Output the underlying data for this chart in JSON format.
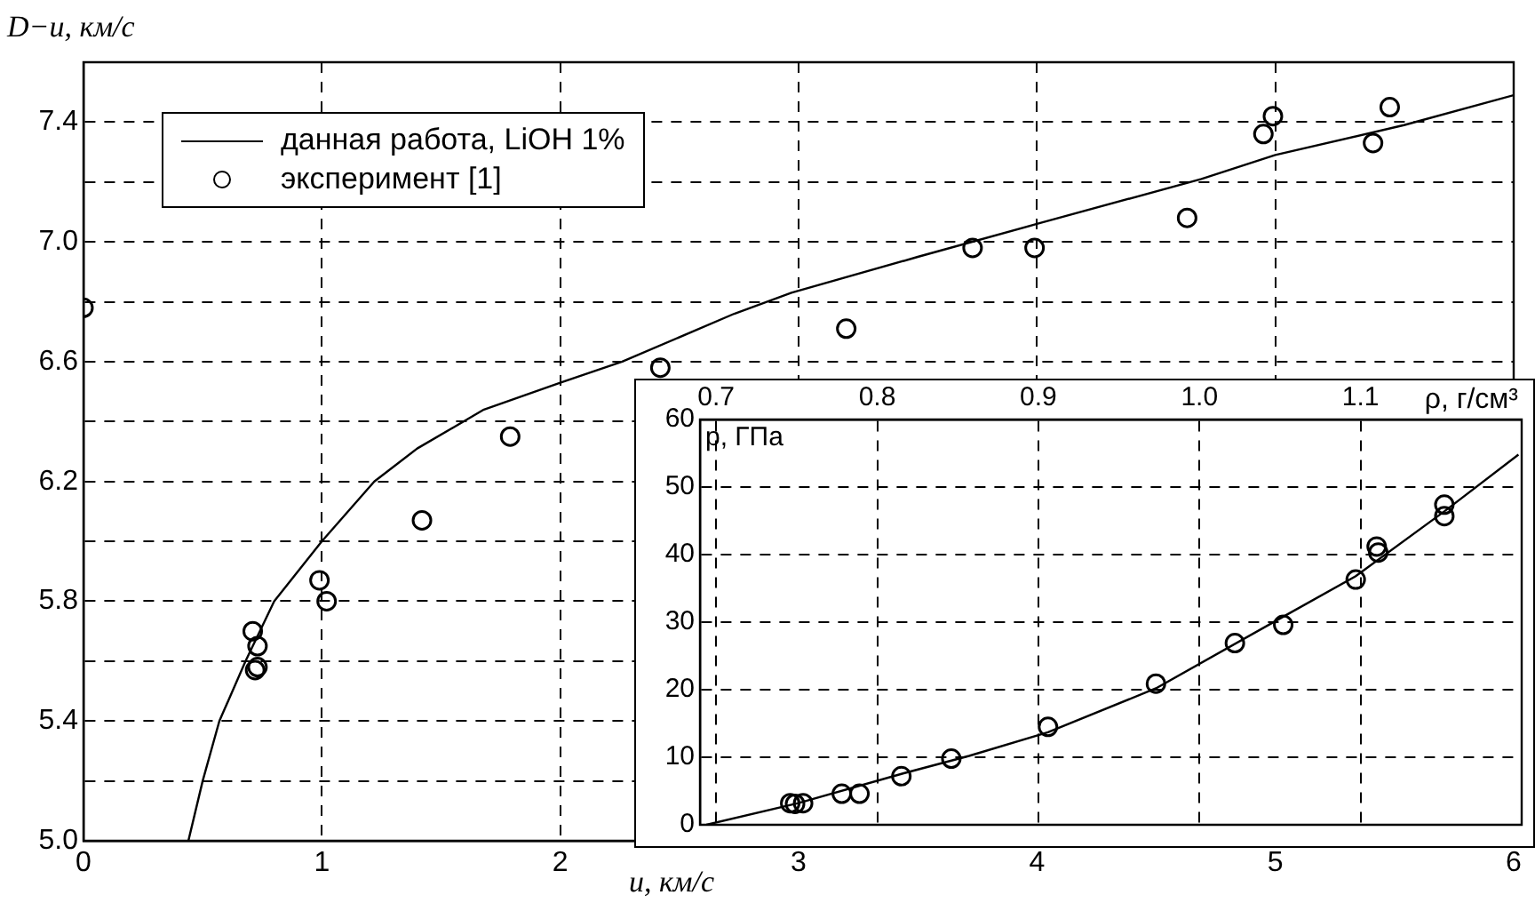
{
  "chart_data": [
    {
      "type": "line",
      "xlabel": "u, км/с",
      "ylabel": "D−u, км/с",
      "xlim": [
        0,
        6
      ],
      "xticks": [
        0,
        1,
        2,
        3,
        4,
        5,
        6
      ],
      "ylim": [
        5.0,
        7.6
      ],
      "yticks": [
        {
          "value": 5.0,
          "label": "5.0"
        },
        {
          "value": 5.2,
          "label": null
        },
        5.4,
        {
          "value": 5.6,
          "label": null
        },
        5.8,
        {
          "value": 6.0,
          "label": null
        },
        6.2,
        {
          "value": 6.4,
          "label": null
        },
        6.6,
        {
          "value": 6.8,
          "label": null
        },
        {
          "value": 7.0,
          "label": "7.0"
        },
        {
          "value": 7.2,
          "label": null
        },
        7.4
      ],
      "grid": true,
      "legend": "top left",
      "series": [
        {
          "type": "line",
          "name": "данная работа, LiOH 1%",
          "color": "#000000",
          "marker": "none",
          "line_style": "solid",
          "x": [
            0.44,
            0.5,
            0.57,
            0.68,
            0.8,
            1.0,
            1.22,
            1.4,
            1.68,
            2.0,
            2.26,
            2.73,
            2.97,
            3.5,
            4.0,
            4.69,
            5.0,
            5.54,
            6.0
          ],
          "values": [
            5.0,
            5.2,
            5.4,
            5.6,
            5.8,
            6.0,
            6.2,
            6.31,
            6.44,
            6.53,
            6.6,
            6.76,
            6.83,
            6.95,
            7.06,
            7.21,
            7.29,
            7.39,
            7.49
          ]
        },
        {
          "type": "scatter",
          "name": "эксперимент [1]",
          "color": "#000000",
          "marker": "circle",
          "x": [
            0,
            0.71,
            0.73,
            0.72,
            0.73,
            0.99,
            1.02,
            1.42,
            1.79,
            2.42,
            3.2,
            3.73,
            3.99,
            4.63,
            4.95,
            4.99,
            5.41,
            5.48
          ],
          "values": [
            6.78,
            5.7,
            5.65,
            5.57,
            5.58,
            5.87,
            5.8,
            6.07,
            6.35,
            6.58,
            6.71,
            6.98,
            6.98,
            7.08,
            7.36,
            7.42,
            7.33,
            7.45
          ]
        }
      ]
    },
    {
      "type": "line",
      "xlabel": "ρ, г/см³",
      "ylabel": "p, ГПа",
      "xlim": [
        0.69,
        1.2
      ],
      "xticks": [
        {
          "value": 0.7,
          "label": "0.7"
        },
        0.8,
        0.9,
        {
          "value": 1.0,
          "label": "1.0"
        },
        1.1
      ],
      "ylim": [
        0,
        60
      ],
      "yticks": [
        0,
        10,
        20,
        30,
        40,
        50,
        60
      ],
      "grid": true,
      "series": [
        {
          "type": "line",
          "color": "#000000",
          "marker": "none",
          "line_style": "solid",
          "x": [
            0.694,
            0.751,
            0.816,
            0.857,
            0.906,
            0.973,
            1.052,
            1.097,
            1.152,
            1.198
          ],
          "values": [
            0,
            3.2,
            7.6,
            10.2,
            13.7,
            20.2,
            30.8,
            36.8,
            46.4,
            54.8
          ]
        },
        {
          "type": "scatter",
          "color": "#000000",
          "marker": "circle",
          "x": [
            0.746,
            0.749,
            0.754,
            0.778,
            0.789,
            0.815,
            0.846,
            0.906,
            0.973,
            1.022,
            1.052,
            1.097,
            1.11,
            1.111,
            1.152,
            1.152
          ],
          "values": [
            3.2,
            3.1,
            3.2,
            4.6,
            4.6,
            7.2,
            9.8,
            14.5,
            20.9,
            26.9,
            29.6,
            36.3,
            41.2,
            40.3,
            47.4,
            45.7
          ]
        }
      ]
    }
  ]
}
